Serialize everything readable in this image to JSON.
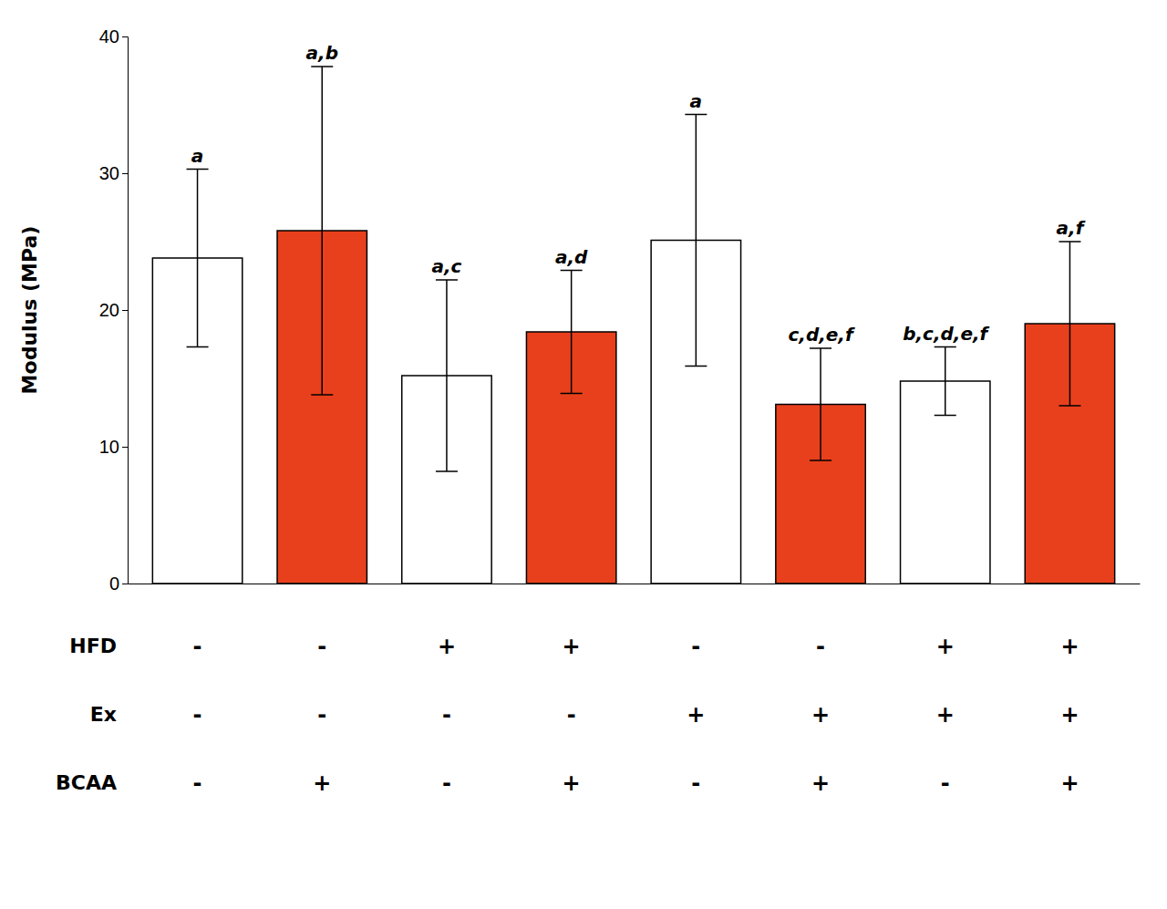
{
  "chart_data": {
    "type": "bar",
    "ylabel": "Modulus (MPa)",
    "categories": [
      null,
      null,
      null,
      null,
      null,
      null,
      null,
      null
    ],
    "values": [
      23.8,
      25.8,
      15.2,
      18.4,
      25.1,
      13.1,
      14.8,
      19.0
    ],
    "errors": [
      6.5,
      12.0,
      7.0,
      4.5,
      9.2,
      4.1,
      2.5,
      6.0
    ],
    "annotations": [
      "a",
      "a,b",
      "a,c",
      "a,d",
      "a",
      "c,d,e,f",
      "b,c,d,e,f",
      "a,f"
    ],
    "colors": [
      "white",
      "#E8401C",
      "white",
      "#E8401C",
      "white",
      "#E8401C",
      "white",
      "#E8401C"
    ],
    "factors": [
      {
        "name": "HFD",
        "values": [
          "-",
          "-",
          "+",
          "+",
          "-",
          "-",
          "+",
          "+"
        ]
      },
      {
        "name": "Ex",
        "values": [
          "-",
          "-",
          "-",
          "-",
          "+",
          "+",
          "+",
          "+"
        ]
      },
      {
        "name": "BCAA",
        "values": [
          "-",
          "+",
          "-",
          "+",
          "-",
          "+",
          "-",
          "+"
        ]
      }
    ],
    "ylim": [
      0,
      40
    ],
    "yticks": [
      0,
      10,
      20,
      30,
      40
    ],
    "grid": false
  }
}
